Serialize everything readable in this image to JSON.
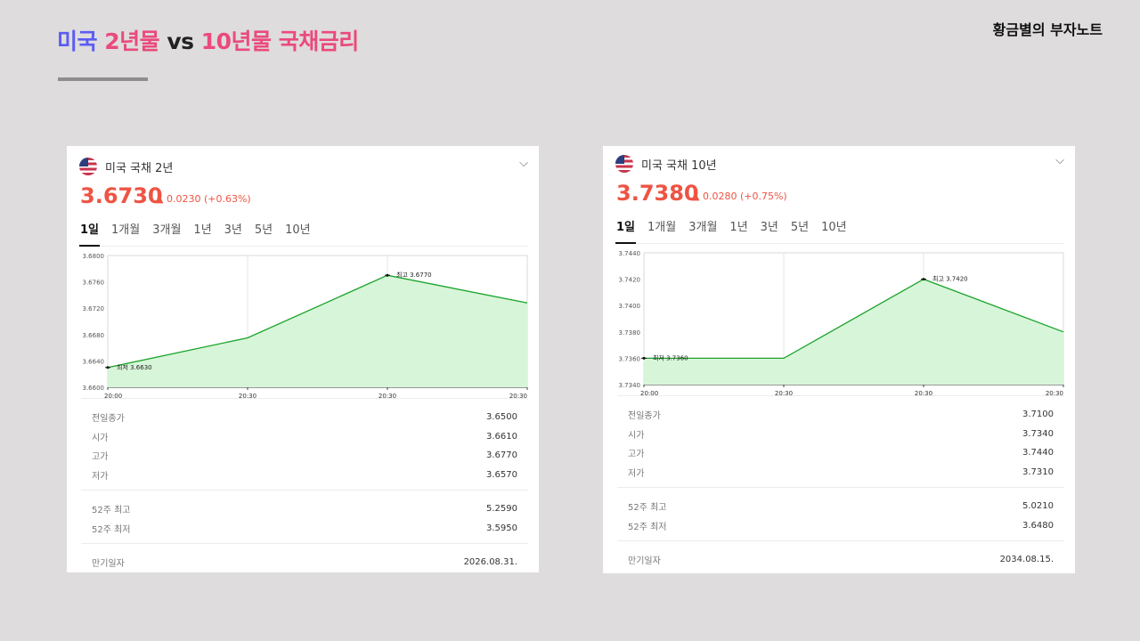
{
  "slide": {
    "title_part1": "미국",
    "title_part2": "2년물",
    "title_vs": "vs",
    "title_part3": "10년물 국채금리",
    "brand": "황금별의 부자노트"
  },
  "colors": {
    "price": "#ee5444",
    "line": "#1aa329",
    "area": "#d7f5d9",
    "title_blue": "#5b5cf2",
    "title_pink": "#ea4a7c"
  },
  "cards": [
    {
      "name": "미국 국채 2년",
      "price": "3.6730",
      "change": "▲ 0.0230 (+0.63%)",
      "tabs": [
        "1일",
        "1개월",
        "3개월",
        "1년",
        "3년",
        "5년",
        "10년"
      ],
      "stats": [
        [
          [
            "전일종가",
            "3.6500"
          ],
          [
            "시가",
            "3.6610"
          ],
          [
            "고가",
            "3.6770"
          ],
          [
            "저가",
            "3.6570"
          ]
        ],
        [
          [
            "52주 최고",
            "5.2590"
          ],
          [
            "52주 최저",
            "3.5950"
          ]
        ],
        [
          [
            "만기일자",
            "2026.08.31."
          ]
        ]
      ],
      "chart_data": {
        "type": "area",
        "title": "",
        "y_ticks": [
          "3.6800",
          "3.6760",
          "3.6720",
          "3.6680",
          "3.6640",
          "3.6600"
        ],
        "ylim": [
          3.66,
          3.68
        ],
        "x_labels": [
          "20:00",
          "20:30",
          "20:30",
          "20:30"
        ],
        "series": [
          {
            "name": "미국 국채 2년",
            "values": [
              3.663,
              3.6675,
              3.677,
              3.6728
            ]
          }
        ],
        "annotations": {
          "high": "최고 3.6770",
          "low": "최저 3.6630"
        }
      }
    },
    {
      "name": "미국 국채 10년",
      "price": "3.7380",
      "change": "▲ 0.0280 (+0.75%)",
      "tabs": [
        "1일",
        "1개월",
        "3개월",
        "1년",
        "3년",
        "5년",
        "10년"
      ],
      "stats": [
        [
          [
            "전일종가",
            "3.7100"
          ],
          [
            "시가",
            "3.7340"
          ],
          [
            "고가",
            "3.7440"
          ],
          [
            "저가",
            "3.7310"
          ]
        ],
        [
          [
            "52주 최고",
            "5.0210"
          ],
          [
            "52주 최저",
            "3.6480"
          ]
        ],
        [
          [
            "만기일자",
            "2034.08.15."
          ]
        ]
      ],
      "chart_data": {
        "type": "area",
        "title": "",
        "y_ticks": [
          "3.7440",
          "3.7420",
          "3.7400",
          "3.7380",
          "3.7360",
          "3.7340"
        ],
        "ylim": [
          3.734,
          3.744
        ],
        "x_labels": [
          "20:00",
          "20:30",
          "20:30",
          "20:30"
        ],
        "series": [
          {
            "name": "미국 국채 10년",
            "values": [
              3.736,
              3.736,
              3.742,
              3.738
            ]
          }
        ],
        "annotations": {
          "high": "최고 3.7420",
          "low": "최저 3.7360"
        }
      }
    }
  ]
}
